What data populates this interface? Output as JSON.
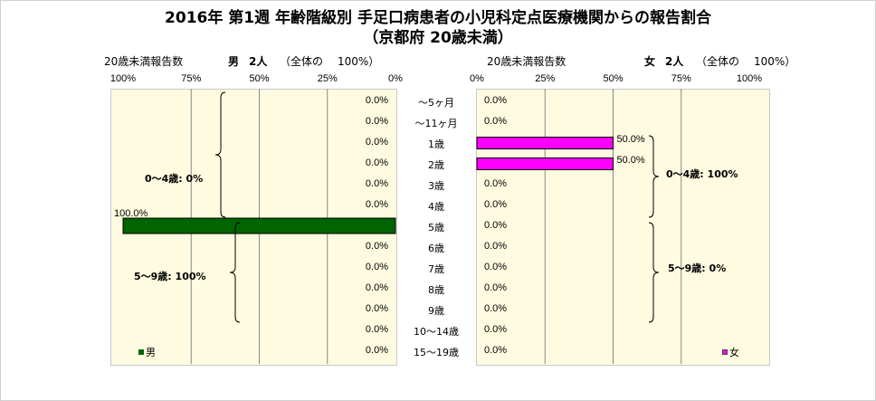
{
  "title_line1": "2016年 第1週 年齢階級別 手足口病患者の小児科定点医療機関からの報告割合",
  "title_line2": "（京都府 20歳未満）",
  "left_header": {
    "label": "20歳未満報告数",
    "sex": "男",
    "count": "2人",
    "note": "（全体の",
    "pct": "100%）"
  },
  "right_header": {
    "label": "20歳未満報告数",
    "sex": "女",
    "count": "2人",
    "note": "（全体の",
    "pct": "100%）"
  },
  "groups": {
    "male_0_4": "0～4歳: 0%",
    "male_5_9": "5～9歳: 100%",
    "female_0_4": "0～4歳: 100%",
    "female_5_9": "5～9歳: 0%"
  },
  "legend": {
    "male": "男",
    "female": "女"
  },
  "colors": {
    "male": "#006400",
    "female": "#FF00FF",
    "plot_bg": "#FFFBE0",
    "grid": "#888888"
  },
  "chart_data": {
    "type": "bar",
    "orientation": "horizontal",
    "categories": [
      "～5ヶ月",
      "～11ヶ月",
      "1歳",
      "2歳",
      "3歳",
      "4歳",
      "5歳",
      "6歳",
      "7歳",
      "8歳",
      "9歳",
      "10～14歳",
      "15～19歳"
    ],
    "series": [
      {
        "name": "男",
        "values": [
          0,
          0,
          0,
          0,
          0,
          0,
          100,
          0,
          0,
          0,
          0,
          0,
          0
        ],
        "labels": [
          "0.0%",
          "0.0%",
          "0.0%",
          "0.0%",
          "0.0%",
          "0.0%",
          "100.0%",
          "0.0%",
          "0.0%",
          "0.0%",
          "0.0%",
          "0.0%",
          "0.0%"
        ]
      },
      {
        "name": "女",
        "values": [
          0,
          0,
          50,
          50,
          0,
          0,
          0,
          0,
          0,
          0,
          0,
          0,
          0
        ],
        "labels": [
          "0.0%",
          "0.0%",
          "50.0%",
          "50.0%",
          "0.0%",
          "0.0%",
          "0.0%",
          "0.0%",
          "0.0%",
          "0.0%",
          "0.0%",
          "0.0%",
          "0.0%"
        ]
      }
    ],
    "left_ticks": [
      "100%",
      "75%",
      "50%",
      "25%",
      "0%"
    ],
    "right_ticks": [
      "0%",
      "25%",
      "50%",
      "75%",
      "100%"
    ],
    "xlim": [
      0,
      100
    ],
    "grid": true,
    "legend_position": "bottom"
  }
}
